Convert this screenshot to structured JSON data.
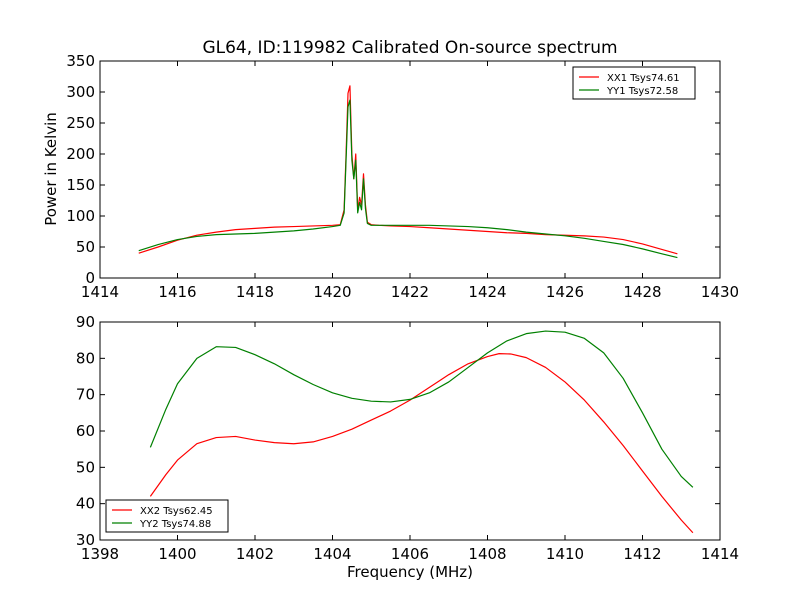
{
  "figure": {
    "title": "GL64, ID:119982 Calibrated On-source spectrum",
    "shared_xlabel": "Frequency (MHz)"
  },
  "chart_data": [
    {
      "type": "line",
      "title": "GL64, ID:119982 Calibrated On-source spectrum",
      "xlabel": "",
      "ylabel": "Power in Kelvin",
      "xlim": [
        1414,
        1430
      ],
      "ylim": [
        0,
        350
      ],
      "xticks": [
        1414,
        1416,
        1418,
        1420,
        1422,
        1424,
        1426,
        1428,
        1430
      ],
      "yticks": [
        0,
        50,
        100,
        150,
        200,
        250,
        300,
        350
      ],
      "grid": false,
      "legend_position": "top-right",
      "series": [
        {
          "name": "XX1 Tsys74.61",
          "color": "#ff0000",
          "x": [
            1415.0,
            1415.5,
            1416.0,
            1416.5,
            1417.0,
            1417.5,
            1418.0,
            1418.5,
            1419.0,
            1419.5,
            1420.0,
            1420.2,
            1420.3,
            1420.35,
            1420.4,
            1420.45,
            1420.5,
            1420.55,
            1420.6,
            1420.65,
            1420.7,
            1420.75,
            1420.8,
            1420.85,
            1420.9,
            1421.0,
            1421.2,
            1421.5,
            1422.0,
            1422.5,
            1423.0,
            1423.5,
            1424.0,
            1424.5,
            1425.0,
            1425.5,
            1426.0,
            1426.5,
            1427.0,
            1427.5,
            1428.0,
            1428.5,
            1428.9
          ],
          "y": [
            40,
            50,
            61,
            69,
            74,
            78,
            80,
            82,
            83,
            84,
            85,
            86,
            110,
            200,
            298,
            310,
            200,
            160,
            200,
            110,
            130,
            118,
            168,
            118,
            90,
            86,
            85,
            84,
            83,
            81,
            79,
            77,
            75,
            73,
            72,
            70,
            69,
            68,
            66,
            62,
            55,
            46,
            39
          ]
        },
        {
          "name": "YY1 Tsys72.58",
          "color": "#008000",
          "x": [
            1415.0,
            1415.5,
            1416.0,
            1416.5,
            1417.0,
            1417.5,
            1418.0,
            1418.5,
            1419.0,
            1419.5,
            1420.0,
            1420.2,
            1420.3,
            1420.35,
            1420.4,
            1420.45,
            1420.5,
            1420.55,
            1420.6,
            1420.65,
            1420.7,
            1420.75,
            1420.8,
            1420.85,
            1420.9,
            1421.0,
            1421.2,
            1421.5,
            1422.0,
            1422.5,
            1423.0,
            1423.5,
            1424.0,
            1424.5,
            1425.0,
            1425.5,
            1426.0,
            1426.5,
            1427.0,
            1427.5,
            1428.0,
            1428.5,
            1428.9
          ],
          "y": [
            44,
            54,
            62,
            67,
            70,
            71,
            72,
            74,
            76,
            79,
            83,
            85,
            105,
            190,
            276,
            287,
            190,
            160,
            190,
            105,
            122,
            110,
            160,
            112,
            88,
            85,
            85,
            85,
            85,
            85,
            84,
            83,
            81,
            78,
            74,
            71,
            68,
            64,
            59,
            54,
            47,
            39,
            33
          ]
        }
      ]
    },
    {
      "type": "line",
      "title": "",
      "xlabel": "Frequency (MHz)",
      "ylabel": "",
      "xlim": [
        1398,
        1414
      ],
      "ylim": [
        30,
        90
      ],
      "xticks": [
        1398,
        1400,
        1402,
        1404,
        1406,
        1408,
        1410,
        1412,
        1414
      ],
      "yticks": [
        30,
        40,
        50,
        60,
        70,
        80,
        90
      ],
      "grid": false,
      "legend_position": "bottom-left",
      "series": [
        {
          "name": "XX2 Tsys62.45",
          "color": "#ff0000",
          "x": [
            1399.3,
            1399.7,
            1400.0,
            1400.5,
            1401.0,
            1401.5,
            1402.0,
            1402.5,
            1403.0,
            1403.5,
            1404.0,
            1404.5,
            1405.0,
            1405.5,
            1406.0,
            1406.5,
            1407.0,
            1407.5,
            1408.0,
            1408.3,
            1408.6,
            1409.0,
            1409.5,
            1410.0,
            1410.5,
            1411.0,
            1411.5,
            1412.0,
            1412.5,
            1413.0,
            1413.3
          ],
          "y": [
            42,
            48,
            52,
            56.5,
            58.2,
            58.5,
            57.5,
            56.8,
            56.5,
            57,
            58.5,
            60.5,
            63,
            65.5,
            68.5,
            72,
            75.5,
            78.5,
            80.5,
            81.3,
            81.2,
            80.2,
            77.5,
            73.5,
            68.5,
            62.5,
            56,
            49,
            42,
            35.5,
            32
          ]
        },
        {
          "name": "YY2 Tsys74.88",
          "color": "#008000",
          "x": [
            1399.3,
            1399.7,
            1400.0,
            1400.5,
            1401.0,
            1401.5,
            1402.0,
            1402.5,
            1403.0,
            1403.5,
            1404.0,
            1404.5,
            1405.0,
            1405.5,
            1406.0,
            1406.5,
            1407.0,
            1407.5,
            1408.0,
            1408.5,
            1409.0,
            1409.5,
            1410.0,
            1410.5,
            1411.0,
            1411.5,
            1412.0,
            1412.5,
            1413.0,
            1413.3
          ],
          "y": [
            55.5,
            66,
            73,
            80,
            83.2,
            83,
            81,
            78.5,
            75.5,
            72.8,
            70.5,
            69,
            68.2,
            68,
            68.7,
            70.5,
            73.5,
            77.5,
            81.5,
            84.8,
            86.8,
            87.5,
            87.2,
            85.5,
            81.5,
            74.5,
            65,
            55,
            47.5,
            44.5
          ]
        }
      ]
    }
  ]
}
